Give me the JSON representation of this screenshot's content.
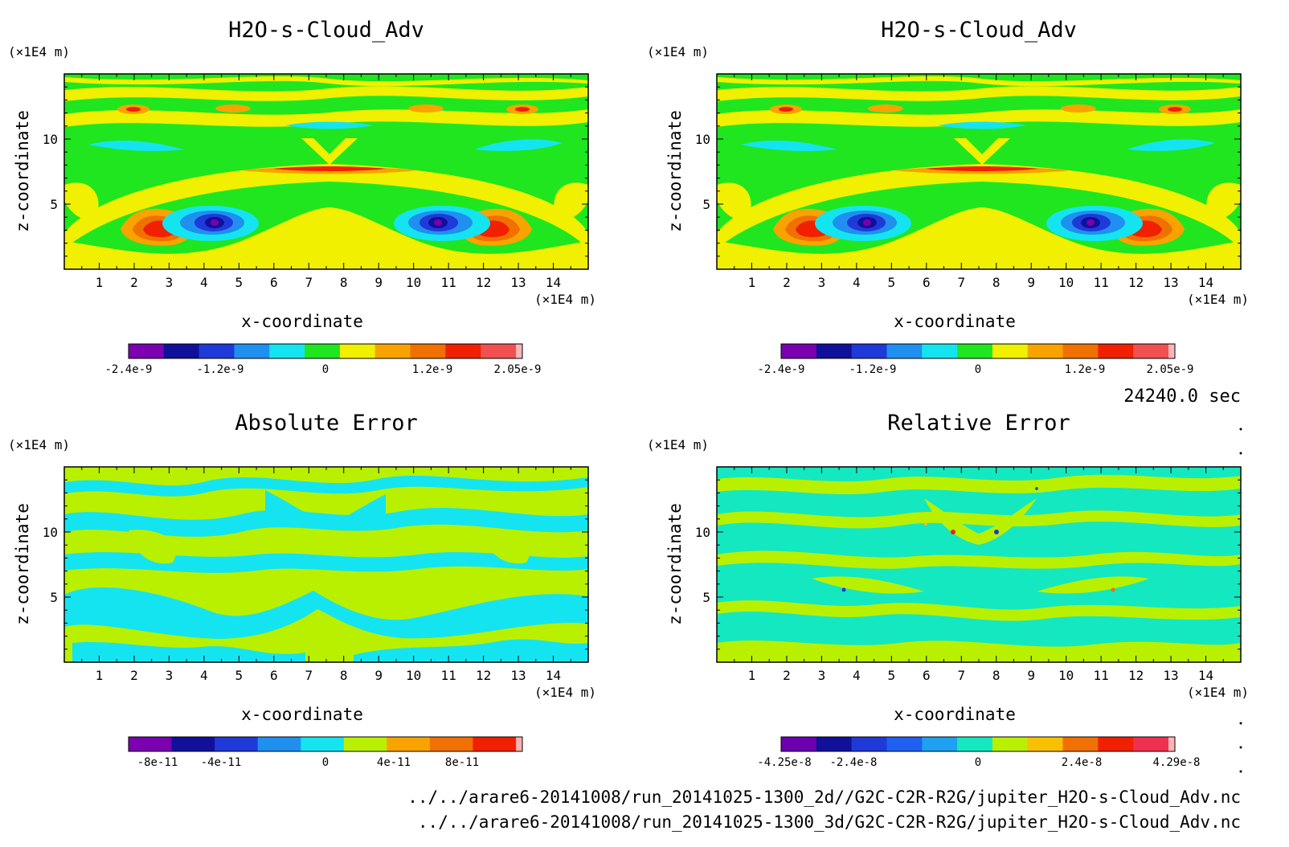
{
  "panels": [
    {
      "id": "p1",
      "title": "H2O-s-Cloud_Adv",
      "xlabel": "x-coordinate",
      "ylabel": "z-coordinate",
      "x_unit": "(×1E4 m)",
      "y_unit": "(×1E4 m)",
      "colorbar_labels": [
        "-2.4e-9",
        "-1.2e-9",
        "0",
        "1.2e-9",
        "2.05e-9"
      ],
      "palette": [
        "#7a00b0",
        "#10109a",
        "#1f3ad8",
        "#1f8ff0",
        "#14e4f0",
        "#1fe61f",
        "#f0f000",
        "#f8a300",
        "#f07000",
        "#f02000",
        "#f05050",
        "#ffb5b5"
      ]
    },
    {
      "id": "p2",
      "title": "H2O-s-Cloud_Adv",
      "xlabel": "x-coordinate",
      "ylabel": "z-coordinate",
      "x_unit": "(×1E4 m)",
      "y_unit": "(×1E4 m)",
      "colorbar_labels": [
        "-2.4e-9",
        "-1.2e-9",
        "0",
        "1.2e-9",
        "2.05e-9"
      ],
      "palette": [
        "#7a00b0",
        "#10109a",
        "#1f3ad8",
        "#1f8ff0",
        "#14e4f0",
        "#1fe61f",
        "#f0f000",
        "#f8a300",
        "#f07000",
        "#f02000",
        "#f05050",
        "#ffb5b5"
      ]
    },
    {
      "id": "p3",
      "title": "Absolute Error",
      "xlabel": "x-coordinate",
      "ylabel": "z-coordinate",
      "x_unit": "(×1E4 m)",
      "y_unit": "(×1E4 m)",
      "colorbar_labels": [
        "-8e-11",
        "-4e-11",
        "0",
        "4e-11",
        "8e-11"
      ],
      "palette": [
        "#7a00b0",
        "#10109a",
        "#1f3ad8",
        "#1f8ff0",
        "#14e4f0",
        "#b8f000",
        "#f8a300",
        "#f07000",
        "#f02000",
        "#ffb0b0"
      ]
    },
    {
      "id": "p4",
      "title": "Relative Error",
      "xlabel": "x-coordinate",
      "ylabel": "z-coordinate",
      "x_unit": "(×1E4 m)",
      "y_unit": "(×1E4 m)",
      "colorbar_labels": [
        "-4.25e-8",
        "-2.4e-8",
        "0",
        "2.4e-8",
        "4.29e-8"
      ],
      "palette": [
        "#6a00b0",
        "#10109a",
        "#1f3ad8",
        "#1f60f0",
        "#1fa0f0",
        "#14e8c0",
        "#b8f000",
        "#f8c000",
        "#f07000",
        "#f02000",
        "#f03050",
        "#ffb5b5"
      ]
    }
  ],
  "time_label": "24240.0 sec",
  "file_paths": [
    "../../arare6-20141008/run_20141025-1300_2d//G2C-C2R-R2G/jupiter_H2O-s-Cloud_Adv.nc",
    "../../arare6-20141008/run_20141025-1300_3d/G2C-C2R-R2G/jupiter_H2O-s-Cloud_Adv.nc"
  ],
  "chart_data": [
    {
      "type": "heatmap",
      "title": "H2O-s-Cloud_Adv",
      "xlabel": "x-coordinate",
      "ylabel": "z-coordinate",
      "x_units": "×1E4 m",
      "y_units": "×1E4 m",
      "xlim": [
        0,
        15
      ],
      "ylim": [
        0,
        15
      ],
      "x_ticks": [
        1,
        2,
        3,
        4,
        5,
        6,
        7,
        8,
        9,
        10,
        11,
        12,
        13,
        14
      ],
      "y_ticks": [
        5,
        10
      ],
      "colorbar_min": -2.4e-09,
      "colorbar_max": 2.05e-09,
      "features": [
        {
          "kind": "min",
          "x": 4.3,
          "z": 3.5,
          "value": -2.4e-09
        },
        {
          "kind": "min",
          "x": 10.9,
          "z": 3.5,
          "value": -2.4e-09
        },
        {
          "kind": "max",
          "x": 2.8,
          "z": 3.0,
          "value": 2.05e-09
        },
        {
          "kind": "max",
          "x": 12.4,
          "z": 3.0,
          "value": 2.05e-09
        },
        {
          "kind": "max",
          "x": 7.6,
          "z": 7.6,
          "value": 1.2e-09
        }
      ]
    },
    {
      "type": "heatmap",
      "title": "H2O-s-Cloud_Adv",
      "xlabel": "x-coordinate",
      "ylabel": "z-coordinate",
      "x_units": "×1E4 m",
      "y_units": "×1E4 m",
      "xlim": [
        0,
        15
      ],
      "ylim": [
        0,
        15
      ],
      "x_ticks": [
        1,
        2,
        3,
        4,
        5,
        6,
        7,
        8,
        9,
        10,
        11,
        12,
        13,
        14
      ],
      "y_ticks": [
        5,
        10
      ],
      "colorbar_min": -2.4e-09,
      "colorbar_max": 2.05e-09,
      "features": [
        {
          "kind": "min",
          "x": 4.3,
          "z": 3.5,
          "value": -2.4e-09
        },
        {
          "kind": "min",
          "x": 10.9,
          "z": 3.5,
          "value": -2.4e-09
        },
        {
          "kind": "max",
          "x": 2.8,
          "z": 3.0,
          "value": 2.05e-09
        },
        {
          "kind": "max",
          "x": 12.4,
          "z": 3.0,
          "value": 2.05e-09
        },
        {
          "kind": "max",
          "x": 7.6,
          "z": 7.6,
          "value": 1.2e-09
        }
      ]
    },
    {
      "type": "heatmap",
      "title": "Absolute Error",
      "xlabel": "x-coordinate",
      "ylabel": "z-coordinate",
      "x_units": "×1E4 m",
      "y_units": "×1E4 m",
      "xlim": [
        0,
        15
      ],
      "ylim": [
        0,
        15
      ],
      "x_ticks": [
        1,
        2,
        3,
        4,
        5,
        6,
        7,
        8,
        9,
        10,
        11,
        12,
        13,
        14
      ],
      "y_ticks": [
        5,
        10
      ],
      "colorbar_ticks": [
        -8e-11,
        -4e-11,
        0,
        4e-11,
        8e-11
      ]
    },
    {
      "type": "heatmap",
      "title": "Relative Error",
      "xlabel": "x-coordinate",
      "ylabel": "z-coordinate",
      "x_units": "×1E4 m",
      "y_units": "×1E4 m",
      "xlim": [
        0,
        15
      ],
      "ylim": [
        0,
        15
      ],
      "x_ticks": [
        1,
        2,
        3,
        4,
        5,
        6,
        7,
        8,
        9,
        10,
        11,
        12,
        13,
        14
      ],
      "y_ticks": [
        5,
        10
      ],
      "colorbar_min": -4.25e-08,
      "colorbar_max": 4.29e-08
    }
  ]
}
